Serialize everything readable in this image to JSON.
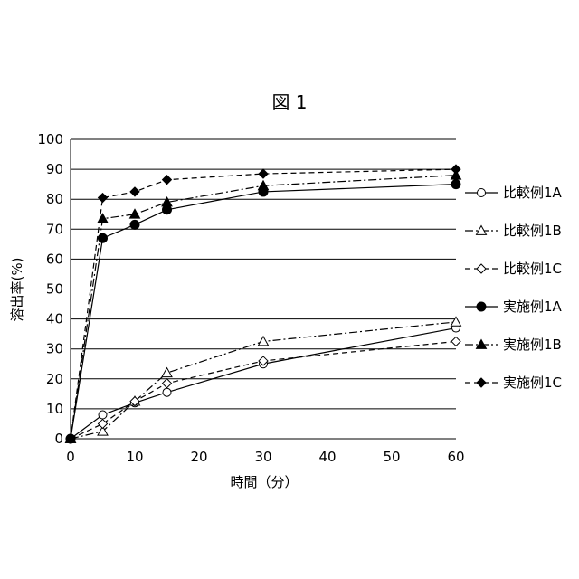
{
  "chart_data": {
    "type": "line",
    "title": "図 1",
    "xlabel": "時間（分）",
    "ylabel": "溶出率(%)",
    "xlim": [
      0,
      60
    ],
    "ylim": [
      0,
      100
    ],
    "x_ticks": [
      0,
      10,
      20,
      30,
      40,
      50,
      60
    ],
    "y_ticks": [
      0,
      10,
      20,
      30,
      40,
      50,
      60,
      70,
      80,
      90,
      100
    ],
    "grid": "horizontal",
    "legend_position": "right",
    "x": [
      0,
      5,
      10,
      15,
      30,
      60
    ],
    "series": [
      {
        "name": "比較例1A",
        "marker": "circle-open",
        "line": "solid",
        "values": [
          0,
          8,
          12,
          15.5,
          25,
          37
        ]
      },
      {
        "name": "比較例1B",
        "marker": "triangle-open",
        "line": "dashdot",
        "values": [
          0,
          2.5,
          12.5,
          22,
          32.5,
          39
        ]
      },
      {
        "name": "比較例1C",
        "marker": "diamond-open",
        "line": "dashed",
        "values": [
          0,
          5,
          12.5,
          18.5,
          26,
          32.5
        ]
      },
      {
        "name": "実施例1A",
        "marker": "circle-filled",
        "line": "solid",
        "values": [
          0,
          67,
          71.5,
          76.5,
          82.5,
          85
        ]
      },
      {
        "name": "実施例1B",
        "marker": "triangle-filled",
        "line": "dashdot",
        "values": [
          0,
          73.5,
          75,
          79,
          84.5,
          88
        ]
      },
      {
        "name": "実施例1C",
        "marker": "diamond-filled",
        "line": "dashed",
        "values": [
          0,
          80.5,
          82.5,
          86.5,
          88.5,
          90
        ]
      }
    ]
  }
}
